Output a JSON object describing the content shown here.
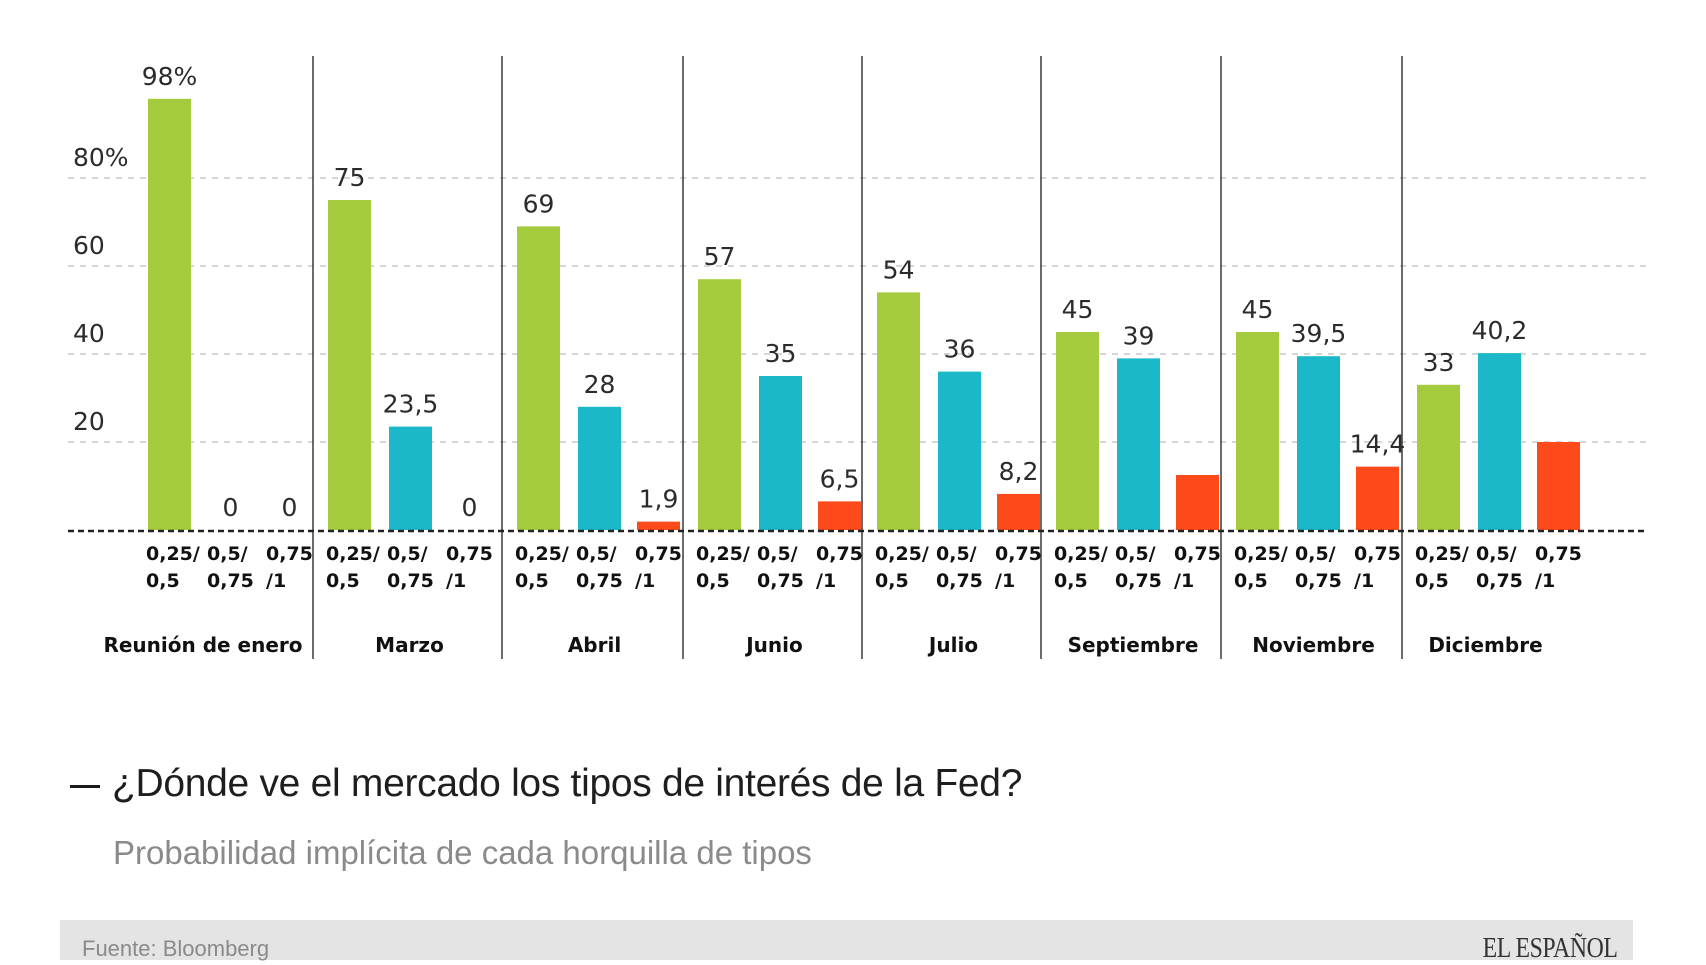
{
  "chart_data": {
    "type": "bar",
    "title": "¿Dónde ve el mercado los tipos de interés de la Fed?",
    "subtitle": "Probabilidad implícita de cada horquilla de tipos",
    "xlabel": "",
    "ylabel": "",
    "ylim": [
      0,
      100
    ],
    "yticks": [
      {
        "value": 20,
        "label": "20"
      },
      {
        "value": 40,
        "label": "40"
      },
      {
        "value": 60,
        "label": "60"
      },
      {
        "value": 80,
        "label": "80%"
      }
    ],
    "grid": true,
    "categories": [
      "Reunión de enero",
      "Marzo",
      "Abril",
      "Junio",
      "Julio",
      "Septiembre",
      "Noviembre",
      "Diciembre"
    ],
    "bar_labels": [
      {
        "line1": "0,25/",
        "line2": "0,5"
      },
      {
        "line1": "0,5/",
        "line2": "0,75"
      },
      {
        "line1": "0,75",
        "line2": "/1"
      }
    ],
    "series": [
      {
        "name": "0,25/0,5",
        "color": "#a3cb3d",
        "values": [
          98,
          75,
          69,
          57,
          54,
          45,
          45,
          33
        ],
        "labels": [
          "98%",
          "75",
          "69",
          "57",
          "54",
          "45",
          "45",
          "33"
        ]
      },
      {
        "name": "0,5/0,75",
        "color": "#1bb8c9",
        "values": [
          0,
          23.5,
          28,
          35,
          36,
          39,
          39.5,
          40.2
        ],
        "labels": [
          "0",
          "23,5",
          "28",
          "35",
          "36",
          "39",
          "39,5",
          "40,2"
        ]
      },
      {
        "name": "0,75/1",
        "color": "#fc4a1a",
        "values": [
          0,
          0,
          1.9,
          6.5,
          8.2,
          12.5,
          14.4,
          20
        ],
        "labels": [
          "0",
          "0",
          "1,9",
          "6,5",
          "8,2",
          "",
          "14,4",
          ""
        ]
      }
    ]
  },
  "footer": {
    "source": "Fuente: Bloomberg",
    "brand": "EL ESPAÑOL"
  }
}
